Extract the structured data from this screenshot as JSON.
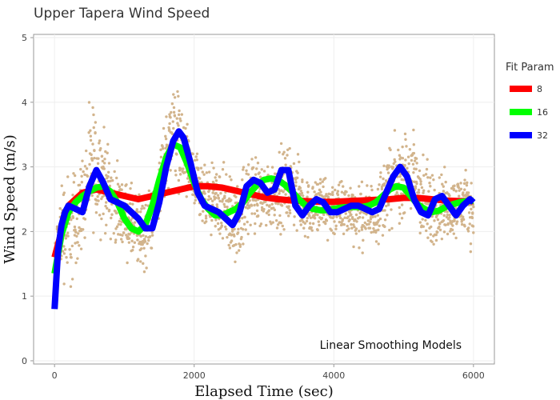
{
  "chart_data": {
    "type": "scatter",
    "title": "Upper Tapera Wind Speed",
    "xlabel": "Elapsed Time (sec)",
    "ylabel": "Wind Speed (m/s)",
    "xlim": [
      -300,
      6300
    ],
    "ylim": [
      -0.05,
      5.05
    ],
    "x_ticks": [
      "0",
      "2000",
      "4000",
      "6000"
    ],
    "x_tick_values": [
      0,
      2000,
      4000,
      6000
    ],
    "y_ticks": [
      "0",
      "1",
      "2",
      "3",
      "4",
      "5"
    ],
    "y_tick_values": [
      0,
      1,
      2,
      3,
      4,
      5
    ],
    "grid": true,
    "legend_title": "Fit Param",
    "legend_position": "right",
    "annotation": "Linear Smoothing Models",
    "observations": {
      "color": "#d2b48c",
      "envelope": [
        {
          "x": 0,
          "lo": 1.5,
          "hi": 1.8
        },
        {
          "x": 100,
          "lo": 1.0,
          "hi": 3.2
        },
        {
          "x": 250,
          "lo": 0.7,
          "hi": 3.3
        },
        {
          "x": 400,
          "lo": 1.5,
          "hi": 3.5
        },
        {
          "x": 550,
          "lo": 1.6,
          "hi": 4.4
        },
        {
          "x": 700,
          "lo": 1.8,
          "hi": 3.9
        },
        {
          "x": 850,
          "lo": 1.6,
          "hi": 3.3
        },
        {
          "x": 1000,
          "lo": 1.5,
          "hi": 3.0
        },
        {
          "x": 1150,
          "lo": 1.1,
          "hi": 2.9
        },
        {
          "x": 1300,
          "lo": 1.1,
          "hi": 2.8
        },
        {
          "x": 1450,
          "lo": 1.8,
          "hi": 3.0
        },
        {
          "x": 1600,
          "lo": 2.3,
          "hi": 4.2
        },
        {
          "x": 1700,
          "lo": 2.5,
          "hi": 4.8
        },
        {
          "x": 1850,
          "lo": 2.3,
          "hi": 4.1
        },
        {
          "x": 2000,
          "lo": 1.9,
          "hi": 3.5
        },
        {
          "x": 2200,
          "lo": 1.7,
          "hi": 3.1
        },
        {
          "x": 2400,
          "lo": 1.5,
          "hi": 3.4
        },
        {
          "x": 2600,
          "lo": 1.2,
          "hi": 3.0
        },
        {
          "x": 2800,
          "lo": 1.7,
          "hi": 3.5
        },
        {
          "x": 3000,
          "lo": 1.8,
          "hi": 3.3
        },
        {
          "x": 3200,
          "lo": 1.8,
          "hi": 3.5
        },
        {
          "x": 3400,
          "lo": 1.8,
          "hi": 3.6
        },
        {
          "x": 3600,
          "lo": 1.7,
          "hi": 3.0
        },
        {
          "x": 3800,
          "lo": 1.6,
          "hi": 3.2
        },
        {
          "x": 4000,
          "lo": 1.7,
          "hi": 3.0
        },
        {
          "x": 4200,
          "lo": 1.7,
          "hi": 3.0
        },
        {
          "x": 4400,
          "lo": 1.6,
          "hi": 2.9
        },
        {
          "x": 4600,
          "lo": 1.6,
          "hi": 3.0
        },
        {
          "x": 4800,
          "lo": 1.8,
          "hi": 3.6
        },
        {
          "x": 5000,
          "lo": 2.0,
          "hi": 3.7
        },
        {
          "x": 5150,
          "lo": 1.9,
          "hi": 3.9
        },
        {
          "x": 5300,
          "lo": 1.3,
          "hi": 3.4
        },
        {
          "x": 5500,
          "lo": 1.6,
          "hi": 3.2
        },
        {
          "x": 5700,
          "lo": 1.7,
          "hi": 3.0
        },
        {
          "x": 5850,
          "lo": 1.7,
          "hi": 3.2
        },
        {
          "x": 6000,
          "lo": 1.6,
          "hi": 3.0
        }
      ]
    },
    "series": [
      {
        "name": "8",
        "color": "#ff0000",
        "x": [
          0,
          200,
          400,
          600,
          800,
          1000,
          1200,
          1400,
          1600,
          1800,
          2000,
          2200,
          2400,
          2600,
          2800,
          3000,
          3200,
          3400,
          3600,
          3800,
          4000,
          4200,
          4400,
          4600,
          4800,
          5000,
          5200,
          5400,
          5600,
          5800,
          6000
        ],
        "values": [
          1.6,
          2.4,
          2.6,
          2.65,
          2.6,
          2.55,
          2.5,
          2.55,
          2.6,
          2.65,
          2.7,
          2.7,
          2.68,
          2.63,
          2.58,
          2.53,
          2.5,
          2.48,
          2.47,
          2.46,
          2.46,
          2.47,
          2.48,
          2.49,
          2.5,
          2.52,
          2.52,
          2.5,
          2.48,
          2.47,
          2.47
        ]
      },
      {
        "name": "16",
        "color": "#00ff00",
        "x": [
          0,
          100,
          200,
          300,
          400,
          500,
          600,
          700,
          800,
          900,
          1000,
          1100,
          1200,
          1300,
          1400,
          1500,
          1600,
          1700,
          1800,
          1900,
          2000,
          2100,
          2200,
          2300,
          2400,
          2500,
          2600,
          2700,
          2800,
          2900,
          3000,
          3100,
          3200,
          3300,
          3400,
          3500,
          3600,
          3700,
          3800,
          3900,
          4000,
          4100,
          4200,
          4300,
          4400,
          4500,
          4600,
          4700,
          4800,
          4900,
          5000,
          5100,
          5200,
          5300,
          5400,
          5500,
          5600,
          5700,
          5800,
          5900,
          6000
        ],
        "values": [
          1.35,
          1.95,
          2.3,
          2.45,
          2.55,
          2.62,
          2.68,
          2.7,
          2.62,
          2.45,
          2.2,
          2.05,
          2.0,
          2.1,
          2.4,
          2.8,
          3.15,
          3.35,
          3.3,
          3.05,
          2.75,
          2.5,
          2.35,
          2.25,
          2.25,
          2.3,
          2.35,
          2.45,
          2.6,
          2.72,
          2.8,
          2.82,
          2.8,
          2.72,
          2.62,
          2.5,
          2.4,
          2.35,
          2.33,
          2.33,
          2.35,
          2.37,
          2.38,
          2.38,
          2.38,
          2.4,
          2.45,
          2.55,
          2.65,
          2.7,
          2.68,
          2.55,
          2.42,
          2.35,
          2.3,
          2.32,
          2.38,
          2.42,
          2.45,
          2.47,
          2.48
        ]
      },
      {
        "name": "32",
        "color": "#0000ff",
        "x": [
          0,
          50,
          100,
          150,
          200,
          300,
          400,
          500,
          600,
          700,
          800,
          900,
          1000,
          1100,
          1200,
          1300,
          1400,
          1500,
          1600,
          1700,
          1780,
          1850,
          1950,
          2050,
          2150,
          2250,
          2350,
          2450,
          2550,
          2650,
          2750,
          2850,
          2950,
          3050,
          3150,
          3250,
          3350,
          3450,
          3550,
          3650,
          3750,
          3850,
          3950,
          4050,
          4150,
          4250,
          4350,
          4450,
          4550,
          4650,
          4750,
          4850,
          4950,
          5050,
          5150,
          5250,
          5350,
          5450,
          5550,
          5650,
          5750,
          5850,
          5950,
          6000
        ],
        "values": [
          0.8,
          1.7,
          2.1,
          2.3,
          2.4,
          2.35,
          2.3,
          2.7,
          2.95,
          2.75,
          2.5,
          2.45,
          2.4,
          2.3,
          2.2,
          2.05,
          2.05,
          2.45,
          3.0,
          3.4,
          3.55,
          3.45,
          3.05,
          2.6,
          2.4,
          2.35,
          2.3,
          2.2,
          2.1,
          2.3,
          2.7,
          2.8,
          2.75,
          2.6,
          2.65,
          2.95,
          2.95,
          2.4,
          2.25,
          2.4,
          2.5,
          2.45,
          2.3,
          2.3,
          2.35,
          2.4,
          2.4,
          2.35,
          2.3,
          2.35,
          2.6,
          2.85,
          3.0,
          2.85,
          2.5,
          2.3,
          2.25,
          2.5,
          2.55,
          2.4,
          2.25,
          2.4,
          2.5,
          2.45
        ]
      }
    ]
  }
}
